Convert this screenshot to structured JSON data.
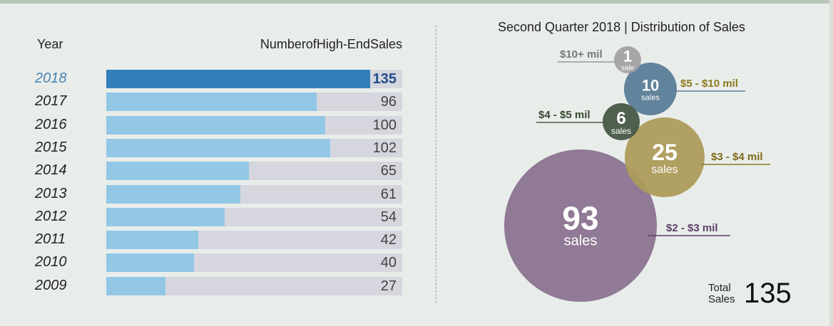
{
  "bar_chart": {
    "col_year_label": "Year",
    "col_sales_label": "NumberofHigh-EndSales"
  },
  "bubble_chart": {
    "title": "Second Quarter 2018 | Distribution of Sales",
    "total_label_line1": "Total",
    "total_label_line2": "Sales",
    "total_value": "135"
  },
  "chart_data": [
    {
      "type": "bar",
      "orientation": "horizontal",
      "title": "",
      "xlabel": "NumberofHigh-EndSales",
      "ylabel": "Year",
      "categories": [
        "2018",
        "2017",
        "2016",
        "2015",
        "2014",
        "2013",
        "2012",
        "2011",
        "2010",
        "2009"
      ],
      "values": [
        135,
        96,
        100,
        102,
        65,
        61,
        54,
        42,
        40,
        27
      ],
      "xlim": [
        0,
        135
      ],
      "highlight_category": "2018",
      "colors": {
        "highlight": "#347ebc",
        "bar": "#93c7e6",
        "track": "#d6d6de",
        "highlight_text": "#1f4e8a",
        "year_highlight": "#4a82b5"
      }
    },
    {
      "type": "bubble",
      "title": "Second Quarter 2018 | Distribution of Sales",
      "items": [
        {
          "range": "$10+ mil",
          "value": 1,
          "unit": "sale",
          "color": "#a3a3a6",
          "label_color": "#777777",
          "line_color": "#999999",
          "label_side": "left"
        },
        {
          "range": "$5 - $10 mil",
          "value": 10,
          "unit": "sales",
          "color": "#5a7d98",
          "label_color": "#8d7a22",
          "line_color": "#5a7d98",
          "label_side": "right"
        },
        {
          "range": "$4 - $5 mil",
          "value": 6,
          "unit": "sales",
          "color": "#485947",
          "label_color": "#36482f",
          "line_color": "#485947",
          "label_side": "left"
        },
        {
          "range": "$3 - $4 mil",
          "value": 25,
          "unit": "sales",
          "color": "#ad9c5a",
          "label_color": "#7d6a1a",
          "line_color": "#8d7a22",
          "label_side": "right"
        },
        {
          "range": "$2 - $3 mil",
          "value": 93,
          "unit": "sales",
          "color": "#8b7490",
          "label_color": "#5e3f6b",
          "line_color": "#5e3f6b",
          "label_side": "right"
        }
      ]
    }
  ]
}
